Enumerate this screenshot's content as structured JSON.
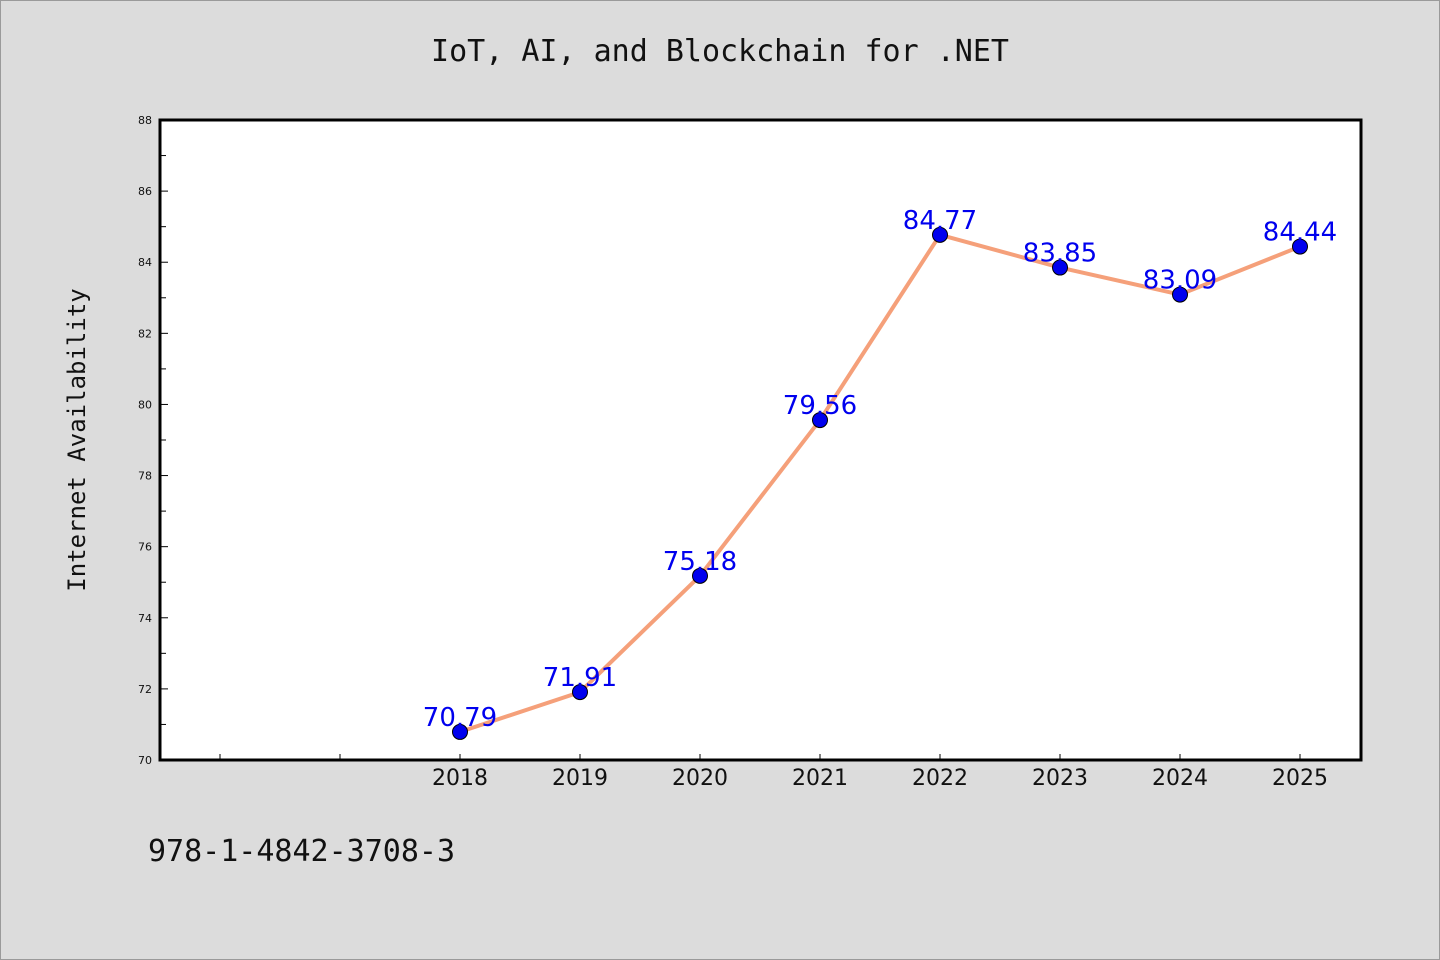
{
  "chart_data": {
    "type": "line",
    "title": "IoT, AI, and Blockchain for .NET",
    "xlabel": "",
    "ylabel": "Internet Availability",
    "categories": [
      "2018",
      "2019",
      "2020",
      "2021",
      "2022",
      "2023",
      "2024",
      "2025"
    ],
    "series": [
      {
        "values": [
          70.79,
          71.91,
          75.18,
          79.56,
          84.77,
          83.85,
          83.09,
          84.44
        ],
        "line_color": "#f5a07a",
        "marker_color": "#0000ee",
        "label_color": "#0000ee"
      }
    ],
    "data_labels": [
      "70.79",
      "71.91",
      "75.18",
      "79.56",
      "84.77",
      "83.85",
      "83.09",
      "84.44"
    ],
    "ylim": [
      70,
      88
    ],
    "yticks": [
      "70",
      "72",
      "74",
      "76",
      "78",
      "80",
      "82",
      "84",
      "86",
      "88"
    ],
    "grid": false,
    "legend": "none"
  },
  "footer": {
    "isbn": "978-1-4842-3708-3"
  },
  "colors": {
    "background": "#dcdcdc",
    "plot_background": "#ffffff"
  }
}
